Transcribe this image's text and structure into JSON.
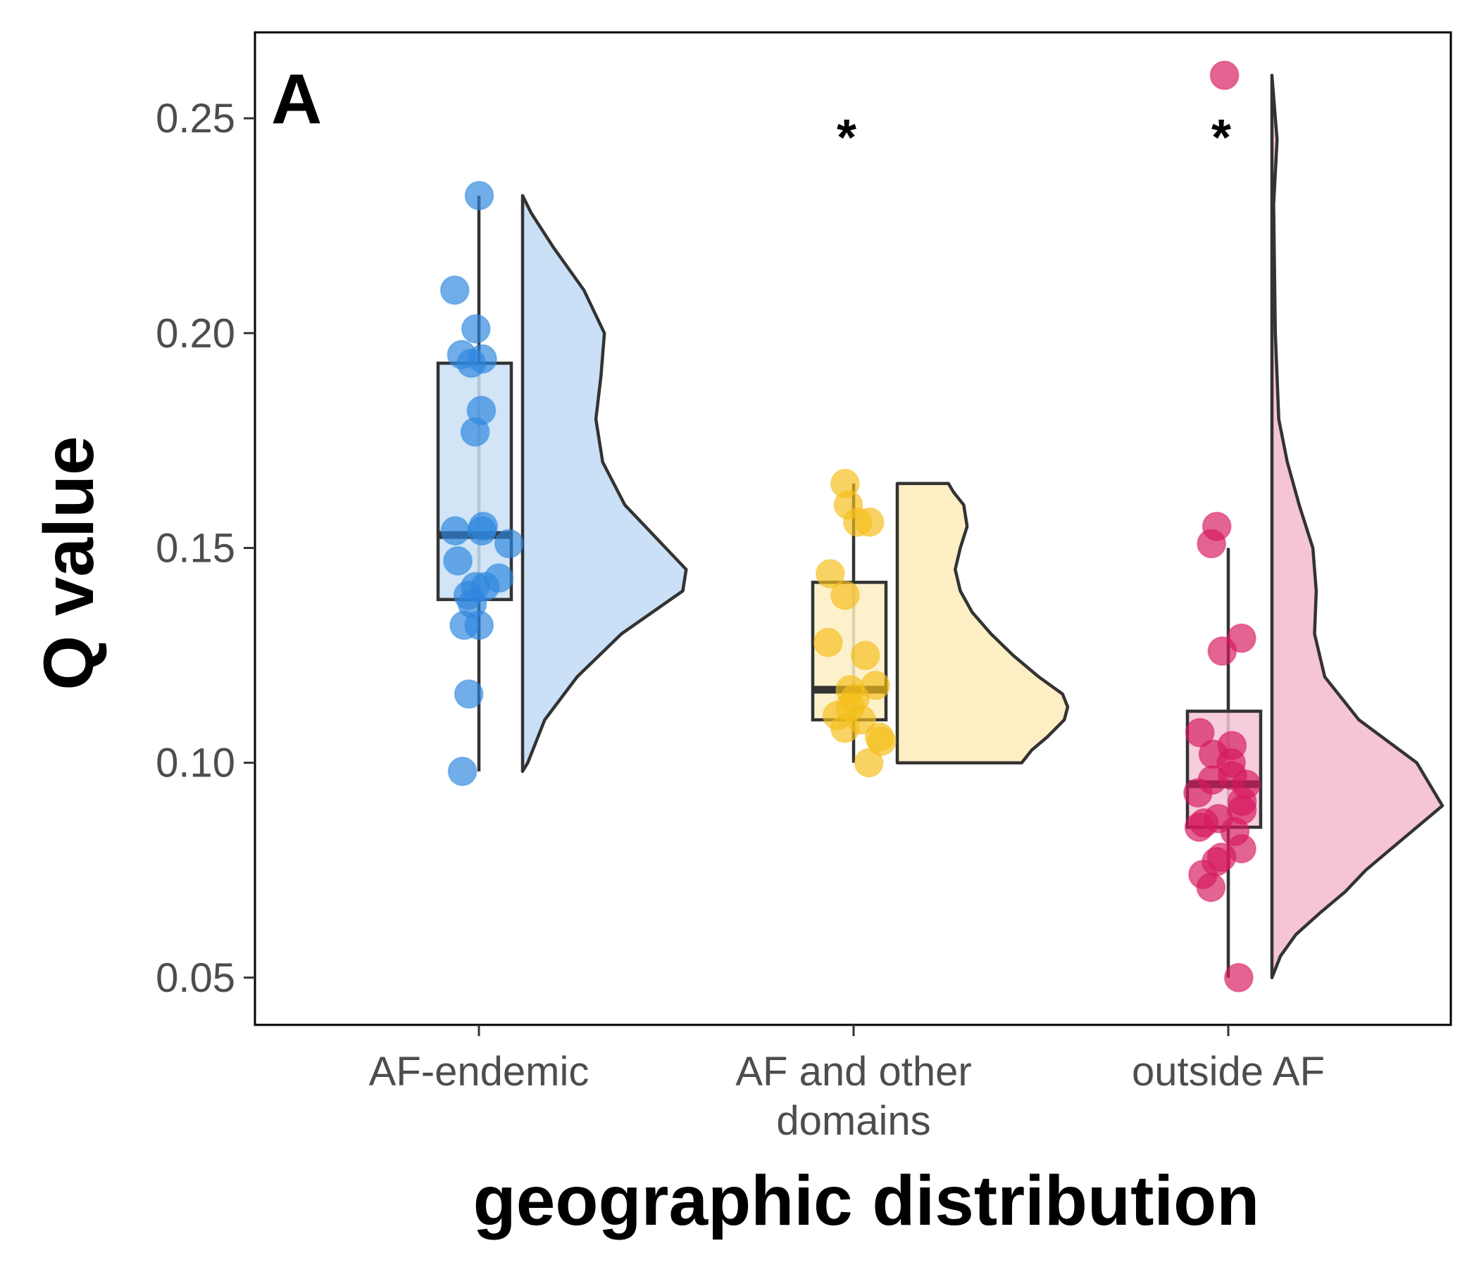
{
  "chart_data": {
    "type": "raincloud",
    "panel_label": "A",
    "xlabel": "geographic distribution",
    "ylabel": "Q value",
    "ylim": [
      0.039,
      0.27
    ],
    "yticks": [
      {
        "value": 0.05,
        "label": "0.05"
      },
      {
        "value": 0.1,
        "label": "0.10"
      },
      {
        "value": 0.15,
        "label": "0.15"
      },
      {
        "value": 0.2,
        "label": "0.20"
      },
      {
        "value": 0.25,
        "label": "0.25"
      }
    ],
    "grid": false,
    "legend": "none",
    "groups": [
      {
        "category": "AF-endemic",
        "category_lines": [
          "AF-endemic"
        ],
        "color": "#2E86DE",
        "fill": "#C9E0F6",
        "significance": "",
        "box": {
          "min": 0.098,
          "q1": 0.138,
          "median": 0.153,
          "q3": 0.193,
          "max": 0.232
        },
        "points": [
          0.232,
          0.21,
          0.201,
          0.195,
          0.194,
          0.193,
          0.182,
          0.177,
          0.155,
          0.154,
          0.154,
          0.151,
          0.147,
          0.143,
          0.141,
          0.141,
          0.139,
          0.137,
          0.132,
          0.132,
          0.116,
          0.098
        ],
        "density": [
          [
            0.098,
            0.0
          ],
          [
            0.1,
            0.03
          ],
          [
            0.11,
            0.13
          ],
          [
            0.12,
            0.32
          ],
          [
            0.13,
            0.58
          ],
          [
            0.14,
            0.94
          ],
          [
            0.145,
            0.96
          ],
          [
            0.15,
            0.84
          ],
          [
            0.16,
            0.6
          ],
          [
            0.17,
            0.47
          ],
          [
            0.18,
            0.43
          ],
          [
            0.19,
            0.46
          ],
          [
            0.2,
            0.48
          ],
          [
            0.21,
            0.36
          ],
          [
            0.22,
            0.18
          ],
          [
            0.228,
            0.05
          ],
          [
            0.232,
            0.0
          ]
        ]
      },
      {
        "category": "AF and other domains",
        "category_lines": [
          "AF and other",
          "domains"
        ],
        "color": "#F5BE1B",
        "fill": "#FDEFC3",
        "significance": "*",
        "box": {
          "min": 0.1,
          "q1": 0.11,
          "median": 0.117,
          "q3": 0.142,
          "max": 0.165
        },
        "points": [
          0.165,
          0.16,
          0.156,
          0.156,
          0.144,
          0.139,
          0.128,
          0.125,
          0.118,
          0.117,
          0.115,
          0.113,
          0.111,
          0.11,
          0.108,
          0.106,
          0.105,
          0.1
        ],
        "density": [
          [
            0.1,
            0.73
          ],
          [
            0.103,
            0.79
          ],
          [
            0.106,
            0.88
          ],
          [
            0.11,
            0.98
          ],
          [
            0.113,
            1.0
          ],
          [
            0.116,
            0.97
          ],
          [
            0.12,
            0.83
          ],
          [
            0.125,
            0.68
          ],
          [
            0.13,
            0.55
          ],
          [
            0.135,
            0.44
          ],
          [
            0.14,
            0.37
          ],
          [
            0.145,
            0.34
          ],
          [
            0.15,
            0.37
          ],
          [
            0.155,
            0.41
          ],
          [
            0.16,
            0.39
          ],
          [
            0.163,
            0.33
          ],
          [
            0.165,
            0.3
          ]
        ]
      },
      {
        "category": "outside AF",
        "category_lines": [
          "outside AF"
        ],
        "color": "#D6195E",
        "fill": "#F5C4D6",
        "significance": "*",
        "box": {
          "min": 0.05,
          "q1": 0.085,
          "median": 0.095,
          "q3": 0.112,
          "max": 0.15
        },
        "points": [
          0.26,
          0.155,
          0.151,
          0.129,
          0.126,
          0.107,
          0.104,
          0.102,
          0.1,
          0.097,
          0.096,
          0.095,
          0.093,
          0.091,
          0.089,
          0.087,
          0.086,
          0.085,
          0.084,
          0.08,
          0.078,
          0.077,
          0.074,
          0.071,
          0.05
        ],
        "density": [
          [
            0.05,
            0.0
          ],
          [
            0.055,
            0.05
          ],
          [
            0.06,
            0.14
          ],
          [
            0.065,
            0.28
          ],
          [
            0.07,
            0.43
          ],
          [
            0.075,
            0.55
          ],
          [
            0.08,
            0.7
          ],
          [
            0.09,
            1.0
          ],
          [
            0.1,
            0.85
          ],
          [
            0.11,
            0.51
          ],
          [
            0.12,
            0.31
          ],
          [
            0.13,
            0.25
          ],
          [
            0.14,
            0.26
          ],
          [
            0.15,
            0.24
          ],
          [
            0.16,
            0.16
          ],
          [
            0.17,
            0.09
          ],
          [
            0.18,
            0.04
          ],
          [
            0.2,
            0.02
          ],
          [
            0.23,
            0.01
          ],
          [
            0.245,
            0.03
          ],
          [
            0.255,
            0.01
          ],
          [
            0.26,
            0.0
          ]
        ]
      }
    ]
  }
}
